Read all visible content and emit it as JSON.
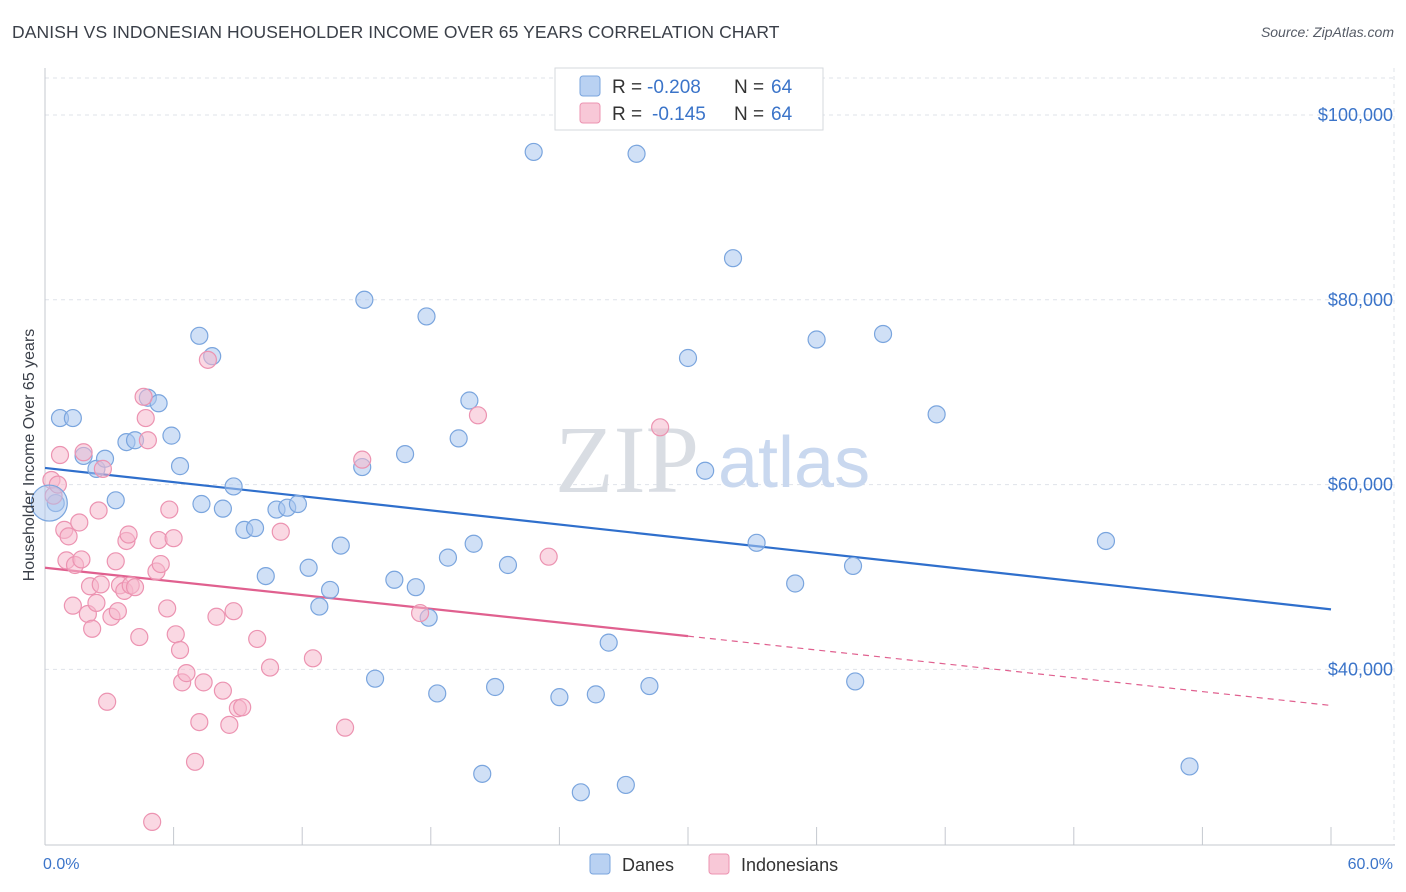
{
  "title": "DANISH VS INDONESIAN HOUSEHOLDER INCOME OVER 65 YEARS CORRELATION CHART",
  "source": "Source: ZipAtlas.com",
  "watermark": {
    "zip": "ZIP",
    "atlas": "atlas"
  },
  "legend": {
    "r_label": "R =",
    "n_label": "N =",
    "danes": {
      "r": "-0.208",
      "n": "64"
    },
    "indonesians": {
      "r": "-0.145",
      "n": "64"
    }
  },
  "colors": {
    "danes_fill": "#a9c6ee",
    "danes_stroke": "#7aa5de",
    "danes_line": "#2f6fcc",
    "indonesians_fill": "#f6b8cc",
    "indonesians_stroke": "#ec93b1",
    "indonesians_line": "#e0608f",
    "tick_label": "#3b74c9",
    "grid": "#dfe3ea"
  },
  "chart_data": {
    "type": "scatter",
    "title": "DANISH VS INDONESIAN HOUSEHOLDER INCOME OVER 65 YEARS CORRELATION CHART",
    "xlabel": "",
    "ylabel": "Householder Income Over 65 years",
    "xlim": [
      0,
      60
    ],
    "ylim": [
      21000,
      104000
    ],
    "x_tick_labels": [
      "0.0%",
      "60.0%"
    ],
    "y_ticks": [
      40000,
      60000,
      80000,
      100000
    ],
    "y_tick_labels": [
      "$40,000",
      "$60,000",
      "$80,000",
      "$100,000"
    ],
    "grid": true,
    "legend_position": "top-center",
    "series": [
      {
        "name": "Danes",
        "r": -0.208,
        "n": 64,
        "trend": {
          "x": [
            0,
            60
          ],
          "y": [
            61800,
            46500
          ]
        },
        "points": [
          [
            0.5,
            58000
          ],
          [
            0.7,
            67200
          ],
          [
            1.3,
            67200
          ],
          [
            1.8,
            63100
          ],
          [
            2.4,
            61700
          ],
          [
            2.8,
            62800
          ],
          [
            3.3,
            58300
          ],
          [
            3.8,
            64600
          ],
          [
            4.2,
            64800
          ],
          [
            4.8,
            69400
          ],
          [
            5.3,
            68800
          ],
          [
            5.9,
            65300
          ],
          [
            6.3,
            62000
          ],
          [
            7.2,
            76100
          ],
          [
            7.3,
            57900
          ],
          [
            7.8,
            73900
          ],
          [
            8.3,
            57400
          ],
          [
            8.8,
            59800
          ],
          [
            9.3,
            55100
          ],
          [
            9.8,
            55300
          ],
          [
            10.3,
            50100
          ],
          [
            10.8,
            57300
          ],
          [
            11.3,
            57500
          ],
          [
            11.8,
            57900
          ],
          [
            12.3,
            51000
          ],
          [
            12.8,
            46800
          ],
          [
            13.3,
            48600
          ],
          [
            13.8,
            53400
          ],
          [
            14.8,
            61900
          ],
          [
            14.9,
            80000
          ],
          [
            15.4,
            39000
          ],
          [
            16.3,
            49700
          ],
          [
            16.8,
            63300
          ],
          [
            17.3,
            48900
          ],
          [
            17.9,
            45600
          ],
          [
            17.8,
            78200
          ],
          [
            18.3,
            37400
          ],
          [
            18.8,
            52100
          ],
          [
            19.3,
            65000
          ],
          [
            19.8,
            69100
          ],
          [
            20.0,
            53600
          ],
          [
            20.4,
            28700
          ],
          [
            21.0,
            38100
          ],
          [
            21.6,
            51300
          ],
          [
            22.8,
            96000
          ],
          [
            24.0,
            37000
          ],
          [
            25.0,
            26700
          ],
          [
            25.7,
            37300
          ],
          [
            26.3,
            42900
          ],
          [
            27.1,
            27500
          ],
          [
            27.6,
            95800
          ],
          [
            28.2,
            38200
          ],
          [
            30.0,
            73700
          ],
          [
            30.8,
            61500
          ],
          [
            32.1,
            84500
          ],
          [
            33.2,
            53700
          ],
          [
            35.0,
            49300
          ],
          [
            36.0,
            75700
          ],
          [
            37.7,
            51200
          ],
          [
            37.8,
            38700
          ],
          [
            39.1,
            76300
          ],
          [
            41.6,
            67600
          ],
          [
            49.5,
            53900
          ],
          [
            53.4,
            29500
          ]
        ]
      },
      {
        "name": "Indonesians",
        "r": -0.145,
        "n": 64,
        "trend": {
          "x": [
            0,
            30
          ],
          "y": [
            51000,
            43600
          ]
        },
        "trend_dashed": {
          "x": [
            30,
            60
          ],
          "y": [
            43600,
            36100
          ]
        },
        "points": [
          [
            0.3,
            60500
          ],
          [
            0.4,
            58800
          ],
          [
            0.6,
            60000
          ],
          [
            0.7,
            63200
          ],
          [
            0.9,
            55100
          ],
          [
            1.0,
            51800
          ],
          [
            1.1,
            54400
          ],
          [
            1.3,
            46900
          ],
          [
            1.4,
            51300
          ],
          [
            1.6,
            55900
          ],
          [
            1.7,
            51900
          ],
          [
            1.8,
            63500
          ],
          [
            2.0,
            46000
          ],
          [
            2.1,
            49000
          ],
          [
            2.2,
            44400
          ],
          [
            2.4,
            47200
          ],
          [
            2.5,
            57200
          ],
          [
            2.6,
            49200
          ],
          [
            2.7,
            61700
          ],
          [
            2.9,
            36500
          ],
          [
            3.1,
            45700
          ],
          [
            3.3,
            51700
          ],
          [
            3.4,
            46300
          ],
          [
            3.5,
            49100
          ],
          [
            3.7,
            48500
          ],
          [
            3.8,
            53900
          ],
          [
            3.9,
            54600
          ],
          [
            4.0,
            49100
          ],
          [
            4.2,
            48900
          ],
          [
            4.4,
            43500
          ],
          [
            4.6,
            69500
          ],
          [
            4.7,
            67200
          ],
          [
            4.8,
            64800
          ],
          [
            5.0,
            23500
          ],
          [
            5.2,
            50600
          ],
          [
            5.3,
            54000
          ],
          [
            5.4,
            51400
          ],
          [
            5.7,
            46600
          ],
          [
            5.8,
            57300
          ],
          [
            6.0,
            54200
          ],
          [
            6.1,
            43800
          ],
          [
            6.3,
            42100
          ],
          [
            6.4,
            38600
          ],
          [
            6.6,
            39600
          ],
          [
            7.0,
            30000
          ],
          [
            7.2,
            34300
          ],
          [
            7.4,
            38600
          ],
          [
            7.6,
            73500
          ],
          [
            8.0,
            45700
          ],
          [
            8.3,
            37700
          ],
          [
            8.6,
            34000
          ],
          [
            8.8,
            46300
          ],
          [
            9.0,
            35800
          ],
          [
            9.2,
            35900
          ],
          [
            9.9,
            43300
          ],
          [
            10.5,
            40200
          ],
          [
            11.0,
            54900
          ],
          [
            12.5,
            41200
          ],
          [
            14.0,
            33700
          ],
          [
            14.8,
            62700
          ],
          [
            17.5,
            46100
          ],
          [
            20.2,
            67500
          ],
          [
            23.5,
            52200
          ],
          [
            28.7,
            66200
          ]
        ]
      }
    ]
  }
}
